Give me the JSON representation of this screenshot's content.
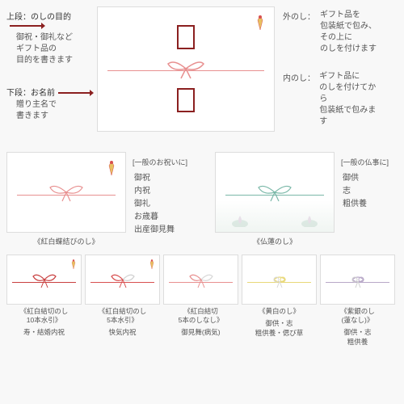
{
  "top": {
    "upper": {
      "title": "上段：のしの目的",
      "desc1": "御祝・御礼など",
      "desc2": "ギフト品の",
      "desc3": "目的を書きます"
    },
    "lower": {
      "title": "下段：お名前",
      "desc1": "贈り主名で",
      "desc2": "書きます"
    },
    "outer": {
      "title": "外のし：",
      "desc1": "ギフト品を",
      "desc2": "包装紙で包み、",
      "desc3": "その上に",
      "desc4": "のしを付けます"
    },
    "inner": {
      "title": "内のし：",
      "desc1": "ギフト品に",
      "desc2": "のしを付けてから",
      "desc3": "包装紙で包みます"
    }
  },
  "middle": {
    "left": {
      "label": "《紅白蝶結びのし》",
      "header": "[一般のお祝いに]",
      "items": [
        "御祝",
        "内祝",
        "御礼",
        "お歳暮",
        "出産御見舞"
      ]
    },
    "right": {
      "label": "《仏蓮のし》",
      "header": "[一般の仏事に]",
      "items": [
        "御供",
        "志",
        "粗供養"
      ]
    }
  },
  "bottom": {
    "cards": [
      {
        "label1": "《紅白結切のし",
        "label2": "10本水引》",
        "usage": "寿・結婚内祝",
        "color1": "#c94040",
        "color2": "#c94040",
        "knot": "musubikiri",
        "deco": true
      },
      {
        "label1": "《紅白結切のし",
        "label2": "5本水引》",
        "usage": "快気内祝",
        "color1": "#d85050",
        "color2": "#d0d0d0",
        "knot": "musubikiri",
        "deco": true
      },
      {
        "label1": "《紅白結切",
        "label2": "5本のしなし》",
        "usage": "御見舞(病気)",
        "color1": "#e89090",
        "color2": "#d8d8d8",
        "knot": "musubikiri",
        "deco": false
      },
      {
        "label1": "《黄白のし》",
        "label2": "",
        "usage": "御供・志\n粗供養・偲び草",
        "color1": "#e8d878",
        "color2": "#d8d8d8",
        "knot": "awaji",
        "deco": false
      },
      {
        "label1": "《紫銀のし",
        "label2": "(蓮なし)》",
        "usage": "御供・志\n粗供養",
        "color1": "#b8a8c8",
        "color2": "#d0d0d0",
        "knot": "awaji",
        "deco": false
      }
    ]
  },
  "colors": {
    "red": "#d85050",
    "darkred": "#8b2020",
    "pink": "#e89090",
    "teal": "#7ab8a8"
  }
}
